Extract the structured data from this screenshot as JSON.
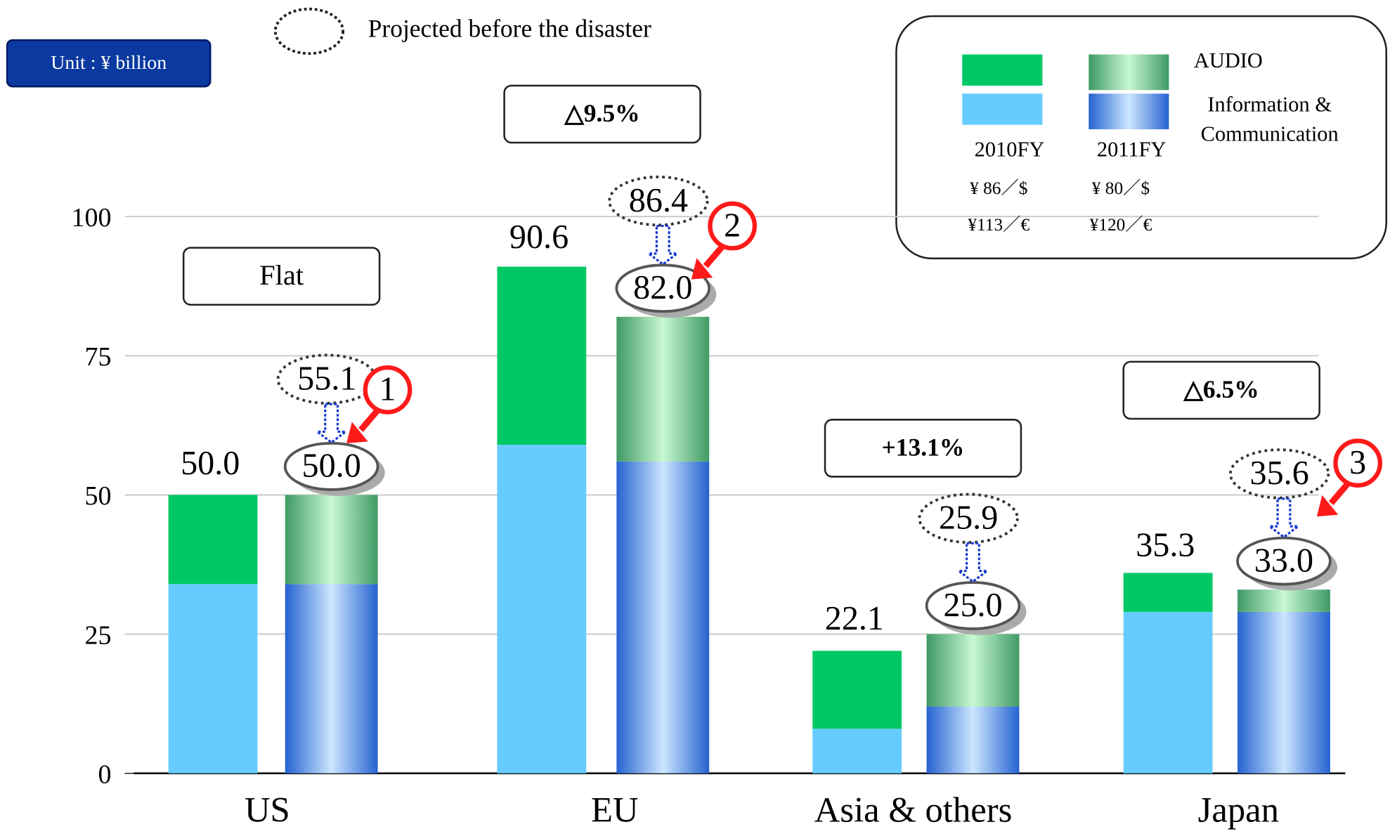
{
  "unit": "Unit : ¥ billion",
  "note": "Projected before the disaster",
  "chart_data": {
    "type": "stacked_bar",
    "categories": [
      "US",
      "EU",
      "Asia & others",
      "Japan"
    ],
    "ylim": [
      0,
      100
    ],
    "yticks": [
      0,
      25,
      50,
      75,
      100
    ],
    "grid": true,
    "periods": [
      {
        "label": "2010FY",
        "rates": [
          "¥ 86／$",
          "¥113／€"
        ]
      },
      {
        "label": "2011FY",
        "rates": [
          "¥ 80／$",
          "¥120／€"
        ]
      }
    ],
    "series": [
      {
        "name": "AUDIO",
        "color": "#00c864",
        "gradient": [
          "#3f9a64",
          "#c8f8d2"
        ],
        "values": [
          [
            16,
            16
          ],
          [
            32,
            26
          ],
          [
            14,
            13
          ],
          [
            7,
            4
          ]
        ]
      },
      {
        "name": "Information & Communication",
        "color": "#66ccff",
        "gradient": [
          "#2563d0",
          "#cce6ff"
        ],
        "values": [
          [
            34,
            34
          ],
          [
            59,
            56
          ],
          [
            8,
            12
          ],
          [
            29,
            29
          ]
        ]
      }
    ],
    "totals": {
      "values": [
        [
          50,
          50
        ],
        [
          90.6,
          82
        ],
        [
          22.1,
          25
        ],
        [
          35.3,
          33
        ]
      ],
      "value_labels": [
        [
          "50.0",
          "50.0"
        ],
        [
          "90.6",
          "82.0"
        ],
        [
          "22.1",
          "25.0"
        ],
        [
          "35.3",
          "33.0"
        ]
      ]
    },
    "projected": {
      "values": [
        55.1,
        86.4,
        25.9,
        35.6
      ],
      "value_labels": [
        "55.1",
        "86.4",
        "25.9",
        "35.6"
      ]
    },
    "changes": [
      "Flat",
      "△9.5%",
      "+13.1%",
      "△6.5%"
    ],
    "callouts": [
      "1",
      "2",
      null,
      "3"
    ]
  }
}
